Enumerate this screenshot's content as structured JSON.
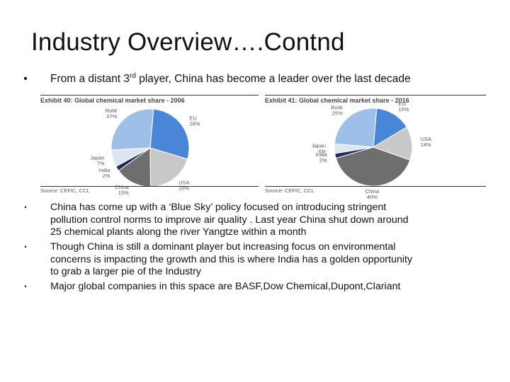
{
  "slide": {
    "title": "Industry Overview….Contnd",
    "intro_bullet": {
      "marker": "•",
      "text_before": "From a distant 3",
      "superscript": "rd",
      "text_after": " player, China has become a leader over the last decade"
    },
    "bullets": [
      {
        "marker": "•",
        "lines": [
          "China has come up with a ‘Blue Sky’ policy focused on introducing stringent",
          "pollution control norms to improve air quality . Last year China shut down around",
          "25 chemical plants along the river Yangtze within a month"
        ]
      },
      {
        "marker": "•",
        "lines": [
          "Though China is still a dominant player but increasing focus on environmental",
          "concerns is impacting the growth and this is where India has a golden opportunity",
          "to grab a larger pie of the Industry"
        ]
      },
      {
        "marker": "•",
        "lines": [
          "Major global companies in this space are BASF,Dow Chemical,Dupont,Clariant"
        ]
      }
    ]
  },
  "chart_data": [
    {
      "type": "pie",
      "title": "Exhibit 40: Global chemical market share - 2006",
      "source": "Source: CEFIC, CCL",
      "slices": [
        {
          "label": "EU",
          "value": 28,
          "value_label": "28%",
          "color": "#4a86d8"
        },
        {
          "label": "USA",
          "value": 20,
          "value_label": "20%",
          "color": "#c8c8c8"
        },
        {
          "label": "China",
          "value": 15,
          "value_label": "15%",
          "color": "#6e6e6e"
        },
        {
          "label": "India",
          "value": 2,
          "value_label": "2%",
          "color": "#1e2d55"
        },
        {
          "label": "Japan",
          "value": 7,
          "value_label": "7%",
          "color": "#dce6f2"
        },
        {
          "label": "RoW",
          "value": 27,
          "value_label": "27%",
          "color": "#9dbfe8"
        }
      ]
    },
    {
      "type": "pie",
      "title": "Exhibit 41: Global chemical market share - 2016",
      "source": "Source: CEFIC, CCL",
      "slices": [
        {
          "label": "EU",
          "value": 15,
          "value_label": "15%",
          "color": "#4a86d8"
        },
        {
          "label": "USA",
          "value": 14,
          "value_label": "14%",
          "color": "#c8c8c8"
        },
        {
          "label": "China",
          "value": 40,
          "value_label": "40%",
          "color": "#6e6e6e"
        },
        {
          "label": "India",
          "value": 2,
          "value_label": "2%",
          "color": "#1e2d55"
        },
        {
          "label": "Japan",
          "value": 4,
          "value_label": "4%",
          "color": "#dce6f2"
        },
        {
          "label": "RoW",
          "value": 25,
          "value_label": "25%",
          "color": "#9dbfe8"
        }
      ]
    }
  ]
}
